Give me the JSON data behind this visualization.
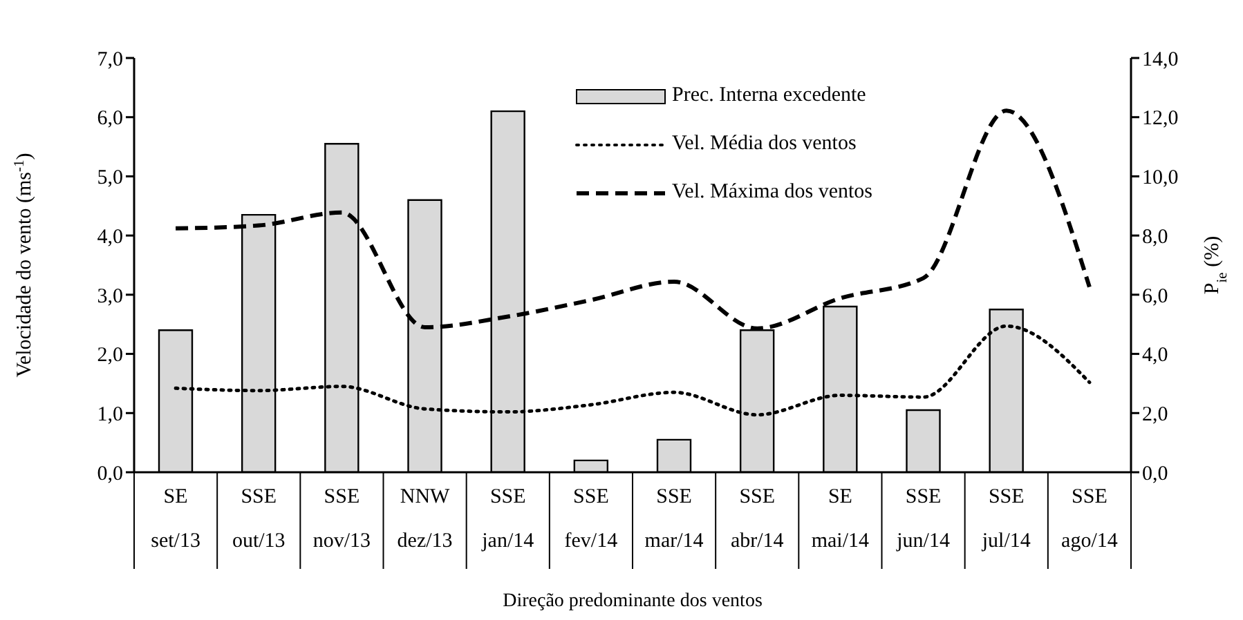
{
  "chart_data": {
    "type": "bar",
    "xlabel": "Direção predominante dos ventos",
    "ylabel": "Velocidade do vento (ms$^{-1}$)",
    "y2label": "P$_{ie}$ (%)",
    "categories": [
      "SE\nset/13",
      "SSE\nout/13",
      "SSE\nnov/13",
      "NNW\ndez/13",
      "SSE\njan/14",
      "SSE\nfev/14",
      "SSE\nmar/14",
      "SSE\nabr/14",
      "SE\nmai/14",
      "SSE\njun/14",
      "SSE\njul/14",
      "SSE\nago/14"
    ],
    "series": [
      {
        "name": "Prec. Interna excedente",
        "axis": "y2",
        "color": "#d9d9d9",
        "values": [
          4.8,
          8.7,
          11.1,
          9.2,
          12.2,
          0.4,
          1.1,
          4.8,
          5.6,
          2.1,
          5.5,
          null
        ]
      },
      {
        "name": "Vel. Média dos ventos",
        "type": "line",
        "color": "#000000",
        "line_style": "dotted",
        "values": [
          1.42,
          1.38,
          1.45,
          1.07,
          1.02,
          1.14,
          1.35,
          0.97,
          1.3,
          1.27,
          2.47,
          1.52
        ]
      },
      {
        "name": "Vel. Máxima dos ventos",
        "type": "line",
        "color": "#000000",
        "line_style": "dashed",
        "values": [
          4.12,
          4.17,
          4.39,
          2.45,
          2.63,
          2.91,
          3.22,
          2.43,
          2.94,
          3.28,
          6.11,
          3.13
        ]
      }
    ],
    "ylim": [
      0,
      7
    ],
    "yticks": [
      {
        "value": 0,
        "label": "0,0"
      },
      {
        "value": 1,
        "label": "1,0"
      },
      {
        "value": 2,
        "label": "2,0"
      },
      {
        "value": 3,
        "label": "3,0"
      },
      {
        "value": 4,
        "label": "4,0"
      },
      {
        "value": 5,
        "label": "5,0"
      },
      {
        "value": 6,
        "label": "6,0"
      },
      {
        "value": 7,
        "label": "7,0"
      }
    ],
    "y2lim": [
      0,
      14
    ],
    "y2ticks": [
      {
        "value": 0,
        "label": "0,0"
      },
      {
        "value": 2,
        "label": "2,0"
      },
      {
        "value": 4,
        "label": "4,0"
      },
      {
        "value": 6,
        "label": "6,0"
      },
      {
        "value": 8,
        "label": "8,0"
      },
      {
        "value": 10,
        "label": "10,0"
      },
      {
        "value": 12,
        "label": "12,0"
      },
      {
        "value": 14,
        "label": "14,0"
      }
    ],
    "marker": "none",
    "grid": false,
    "legend": "top right"
  }
}
